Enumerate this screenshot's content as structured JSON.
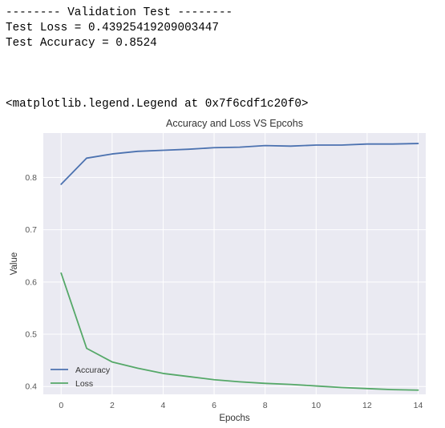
{
  "output": {
    "lines": [
      "-------- Validation Test --------",
      "Test Loss = 0.43925419209003447",
      "Test Accuracy = 0.8524"
    ],
    "repr": "<matplotlib.legend.Legend at 0x7f6cdf1c20f0>"
  },
  "chart_data": {
    "type": "line",
    "title": "Accuracy and Loss VS Epcohs",
    "xlabel": "Epochs",
    "ylabel": "Value",
    "x": [
      0,
      1,
      2,
      3,
      4,
      5,
      6,
      7,
      8,
      9,
      10,
      11,
      12,
      13,
      14
    ],
    "xlim": [
      -0.7,
      14.3
    ],
    "ylim": [
      0.385,
      0.885
    ],
    "xticks": [
      0,
      2,
      4,
      6,
      8,
      10,
      12,
      14
    ],
    "yticks": [
      0.4,
      0.5,
      0.6,
      0.7,
      0.8
    ],
    "xtick_labels": [
      "0",
      "2",
      "4",
      "6",
      "8",
      "10",
      "12",
      "14"
    ],
    "ytick_labels": [
      "0.4",
      "0.5",
      "0.6",
      "0.7",
      "0.8"
    ],
    "grid": true,
    "legend_position": "lower-left",
    "background": "#eaeaf2",
    "series": [
      {
        "name": "Accuracy",
        "color": "#4c72b0",
        "values": [
          0.787,
          0.837,
          0.845,
          0.85,
          0.852,
          0.854,
          0.857,
          0.858,
          0.861,
          0.86,
          0.862,
          0.862,
          0.864,
          0.864,
          0.865
        ]
      },
      {
        "name": "Loss",
        "color": "#55a868",
        "values": [
          0.617,
          0.473,
          0.447,
          0.435,
          0.425,
          0.419,
          0.413,
          0.409,
          0.406,
          0.404,
          0.401,
          0.398,
          0.396,
          0.394,
          0.393
        ]
      }
    ]
  }
}
